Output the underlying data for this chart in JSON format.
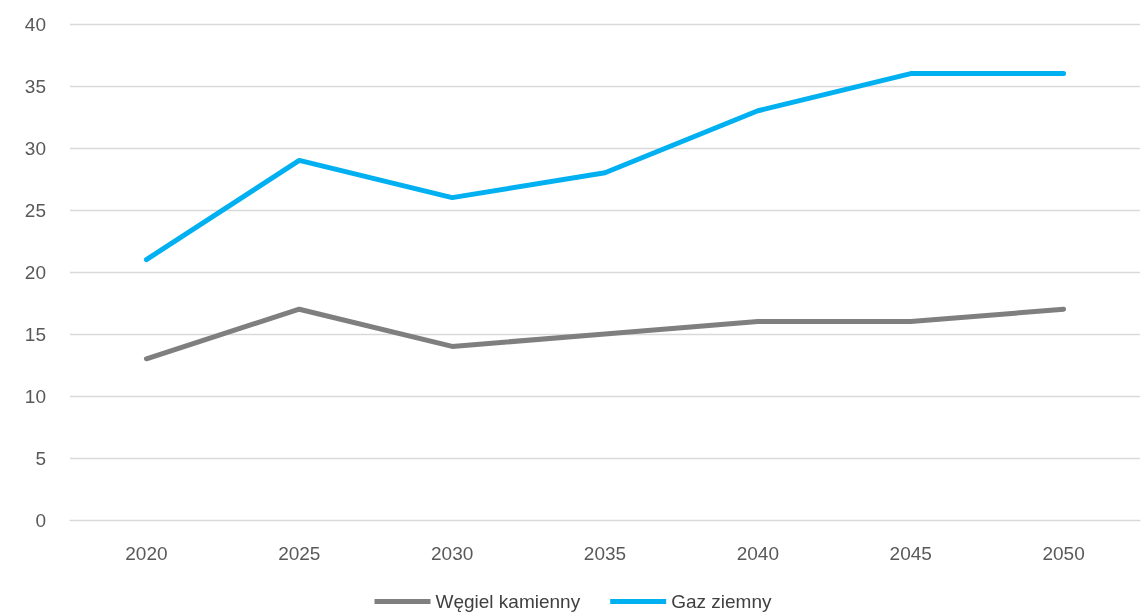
{
  "chart_data": {
    "type": "line",
    "categories": [
      "2020",
      "2025",
      "2030",
      "2035",
      "2040",
      "2045",
      "2050"
    ],
    "series": [
      {
        "name": "Węgiel kamienny",
        "color": "#7f7f7f",
        "values": [
          13,
          17,
          14,
          15,
          16,
          16,
          17
        ]
      },
      {
        "name": "Gaz ziemny",
        "color": "#00b0f0",
        "values": [
          21,
          29,
          26,
          28,
          33,
          36,
          36
        ]
      }
    ],
    "ylim": [
      0,
      40
    ],
    "yticks": [
      0,
      5,
      10,
      15,
      20,
      25,
      30,
      35,
      40
    ],
    "grid": "y",
    "legend": "bottom",
    "marker": "none",
    "line_style": "solid"
  }
}
